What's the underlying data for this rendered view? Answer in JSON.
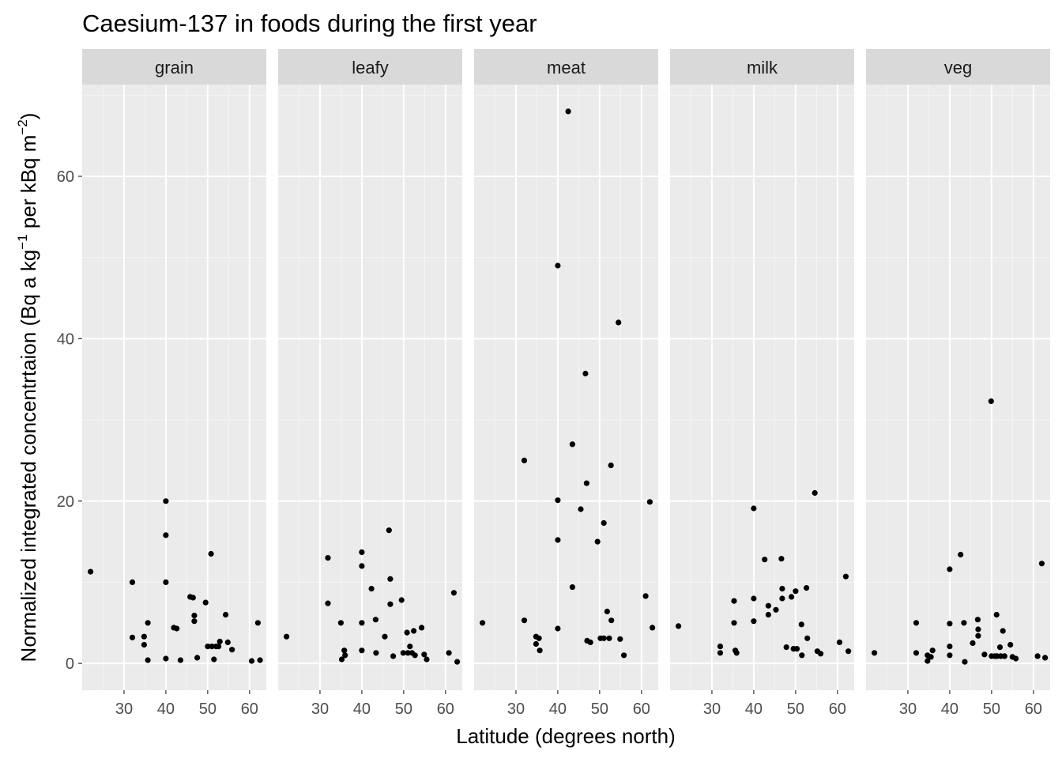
{
  "chart_data": {
    "type": "scatter",
    "title": "Caesium-137 in foods during the first year",
    "xlabel": "Latitude (degrees north)",
    "ylabel": {
      "main": "Normalized integrated concentrtaion (Bq a kg",
      "sup1": "−1",
      "mid": " per kBq m",
      "sup2": "−2",
      "end": ")"
    },
    "xlim": [
      20,
      64
    ],
    "ylim": [
      -3.3,
      71.3
    ],
    "x_ticks": [
      30,
      40,
      50,
      60
    ],
    "y_ticks": [
      0,
      20,
      40,
      60
    ],
    "x_tick_labels": [
      "30",
      "40",
      "50",
      "60"
    ],
    "y_tick_labels": [
      "0",
      "20",
      "40",
      "60"
    ],
    "grid": true,
    "point_color": "#000000",
    "panel_background": "#ebebeb",
    "strip_background": "#d9d9d9",
    "facets": [
      {
        "name": "grain",
        "points": [
          [
            22,
            11.3
          ],
          [
            32,
            10
          ],
          [
            32,
            3.2
          ],
          [
            34.8,
            3.3
          ],
          [
            34.8,
            2.3
          ],
          [
            35.7,
            5
          ],
          [
            35.7,
            0.4
          ],
          [
            40,
            20
          ],
          [
            40,
            15.8
          ],
          [
            40,
            10
          ],
          [
            40,
            0.6
          ],
          [
            41.9,
            4.4
          ],
          [
            42.6,
            4.3
          ],
          [
            43.5,
            0.4
          ],
          [
            45.8,
            8.2
          ],
          [
            46.5,
            8.1
          ],
          [
            46.8,
            5.9
          ],
          [
            46.8,
            5.2
          ],
          [
            47.5,
            0.7
          ],
          [
            49.5,
            7.5
          ],
          [
            50,
            2.1
          ],
          [
            50.8,
            13.5
          ],
          [
            51,
            2.1
          ],
          [
            51.5,
            0.5
          ],
          [
            52,
            2.1
          ],
          [
            52.6,
            2.1
          ],
          [
            52.9,
            2.7
          ],
          [
            54.3,
            6
          ],
          [
            54.8,
            2.6
          ],
          [
            55.8,
            1.7
          ],
          [
            60.5,
            0.3
          ],
          [
            62,
            5
          ],
          [
            62.5,
            0.4
          ]
        ]
      },
      {
        "name": "leafy",
        "points": [
          [
            22,
            3.3
          ],
          [
            31.9,
            13
          ],
          [
            31.9,
            7.4
          ],
          [
            35,
            5
          ],
          [
            35.2,
            0.5
          ],
          [
            35.8,
            1.6
          ],
          [
            36,
            1
          ],
          [
            40,
            13.7
          ],
          [
            40,
            12
          ],
          [
            40,
            5
          ],
          [
            40,
            1.6
          ],
          [
            42.3,
            9.2
          ],
          [
            43.3,
            5.4
          ],
          [
            43.4,
            1.3
          ],
          [
            45.5,
            3.3
          ],
          [
            46.5,
            16.4
          ],
          [
            46.8,
            10.4
          ],
          [
            46.8,
            7.3
          ],
          [
            47.5,
            0.9
          ],
          [
            49.5,
            7.8
          ],
          [
            49.9,
            1.3
          ],
          [
            50.8,
            3.8
          ],
          [
            51,
            1.3
          ],
          [
            51.5,
            2.1
          ],
          [
            52,
            1.3
          ],
          [
            52.4,
            4
          ],
          [
            52.7,
            1
          ],
          [
            54.3,
            4.4
          ],
          [
            54.9,
            1.1
          ],
          [
            55.5,
            0.5
          ],
          [
            60.8,
            1.3
          ],
          [
            62,
            8.7
          ],
          [
            62.8,
            0.2
          ]
        ]
      },
      {
        "name": "meat",
        "points": [
          [
            22,
            5
          ],
          [
            32,
            25
          ],
          [
            32,
            5.3
          ],
          [
            34.8,
            3.3
          ],
          [
            34.8,
            2.4
          ],
          [
            35.5,
            3.1
          ],
          [
            35.7,
            1.6
          ],
          [
            40,
            49
          ],
          [
            40,
            20.1
          ],
          [
            40,
            15.2
          ],
          [
            40,
            4.3
          ],
          [
            42.5,
            68
          ],
          [
            43.5,
            27
          ],
          [
            43.5,
            9.4
          ],
          [
            45.5,
            19
          ],
          [
            46.6,
            35.7
          ],
          [
            46.9,
            22.2
          ],
          [
            47,
            2.8
          ],
          [
            47.8,
            2.6
          ],
          [
            49.5,
            15
          ],
          [
            50.2,
            3.1
          ],
          [
            51,
            17.3
          ],
          [
            51,
            3.1
          ],
          [
            51.8,
            6.4
          ],
          [
            52.3,
            3.1
          ],
          [
            52.7,
            24.4
          ],
          [
            52.8,
            5.3
          ],
          [
            54.5,
            42
          ],
          [
            54.9,
            3
          ],
          [
            55.8,
            1
          ],
          [
            61,
            8.3
          ],
          [
            62,
            19.9
          ],
          [
            62.6,
            4.4
          ]
        ]
      },
      {
        "name": "milk",
        "points": [
          [
            22,
            4.6
          ],
          [
            32,
            2.1
          ],
          [
            32,
            1.3
          ],
          [
            35.3,
            7.7
          ],
          [
            35.3,
            5
          ],
          [
            35.6,
            1.6
          ],
          [
            35.9,
            1.3
          ],
          [
            40,
            19.1
          ],
          [
            40,
            8
          ],
          [
            40,
            5.2
          ],
          [
            42.6,
            12.8
          ],
          [
            43.5,
            7.1
          ],
          [
            43.5,
            6
          ],
          [
            45.3,
            6.6
          ],
          [
            46.6,
            12.9
          ],
          [
            46.8,
            9.2
          ],
          [
            46.8,
            8
          ],
          [
            47.8,
            2
          ],
          [
            49,
            8.2
          ],
          [
            49.5,
            1.8
          ],
          [
            50,
            8.9
          ],
          [
            50.3,
            1.8
          ],
          [
            51.4,
            4.8
          ],
          [
            51.5,
            1
          ],
          [
            52.6,
            9.3
          ],
          [
            52.8,
            3.1
          ],
          [
            54.6,
            21
          ],
          [
            55.2,
            1.5
          ],
          [
            56,
            1.2
          ],
          [
            60.5,
            2.6
          ],
          [
            62,
            10.7
          ],
          [
            62.6,
            1.5
          ]
        ]
      },
      {
        "name": "veg",
        "points": [
          [
            22,
            1.3
          ],
          [
            32,
            5
          ],
          [
            32,
            1.3
          ],
          [
            34.7,
            1
          ],
          [
            34.7,
            0.3
          ],
          [
            35.5,
            0.8
          ],
          [
            35.9,
            1.6
          ],
          [
            40,
            11.6
          ],
          [
            40,
            4.9
          ],
          [
            40,
            2.1
          ],
          [
            40,
            1
          ],
          [
            42.6,
            13.4
          ],
          [
            43.4,
            5
          ],
          [
            43.6,
            0.2
          ],
          [
            45.5,
            2.5
          ],
          [
            46.7,
            5.4
          ],
          [
            46.8,
            4.2
          ],
          [
            46.8,
            3.4
          ],
          [
            48.3,
            1.1
          ],
          [
            49.9,
            32.3
          ],
          [
            50,
            0.9
          ],
          [
            50.8,
            0.9
          ],
          [
            51.2,
            6
          ],
          [
            51.3,
            0.9
          ],
          [
            52,
            2
          ],
          [
            52.2,
            0.9
          ],
          [
            52.7,
            4
          ],
          [
            53.1,
            0.9
          ],
          [
            54.5,
            2.3
          ],
          [
            55,
            0.8
          ],
          [
            55.8,
            0.6
          ],
          [
            61,
            0.9
          ],
          [
            62,
            12.3
          ],
          [
            62.8,
            0.7
          ]
        ]
      }
    ]
  }
}
